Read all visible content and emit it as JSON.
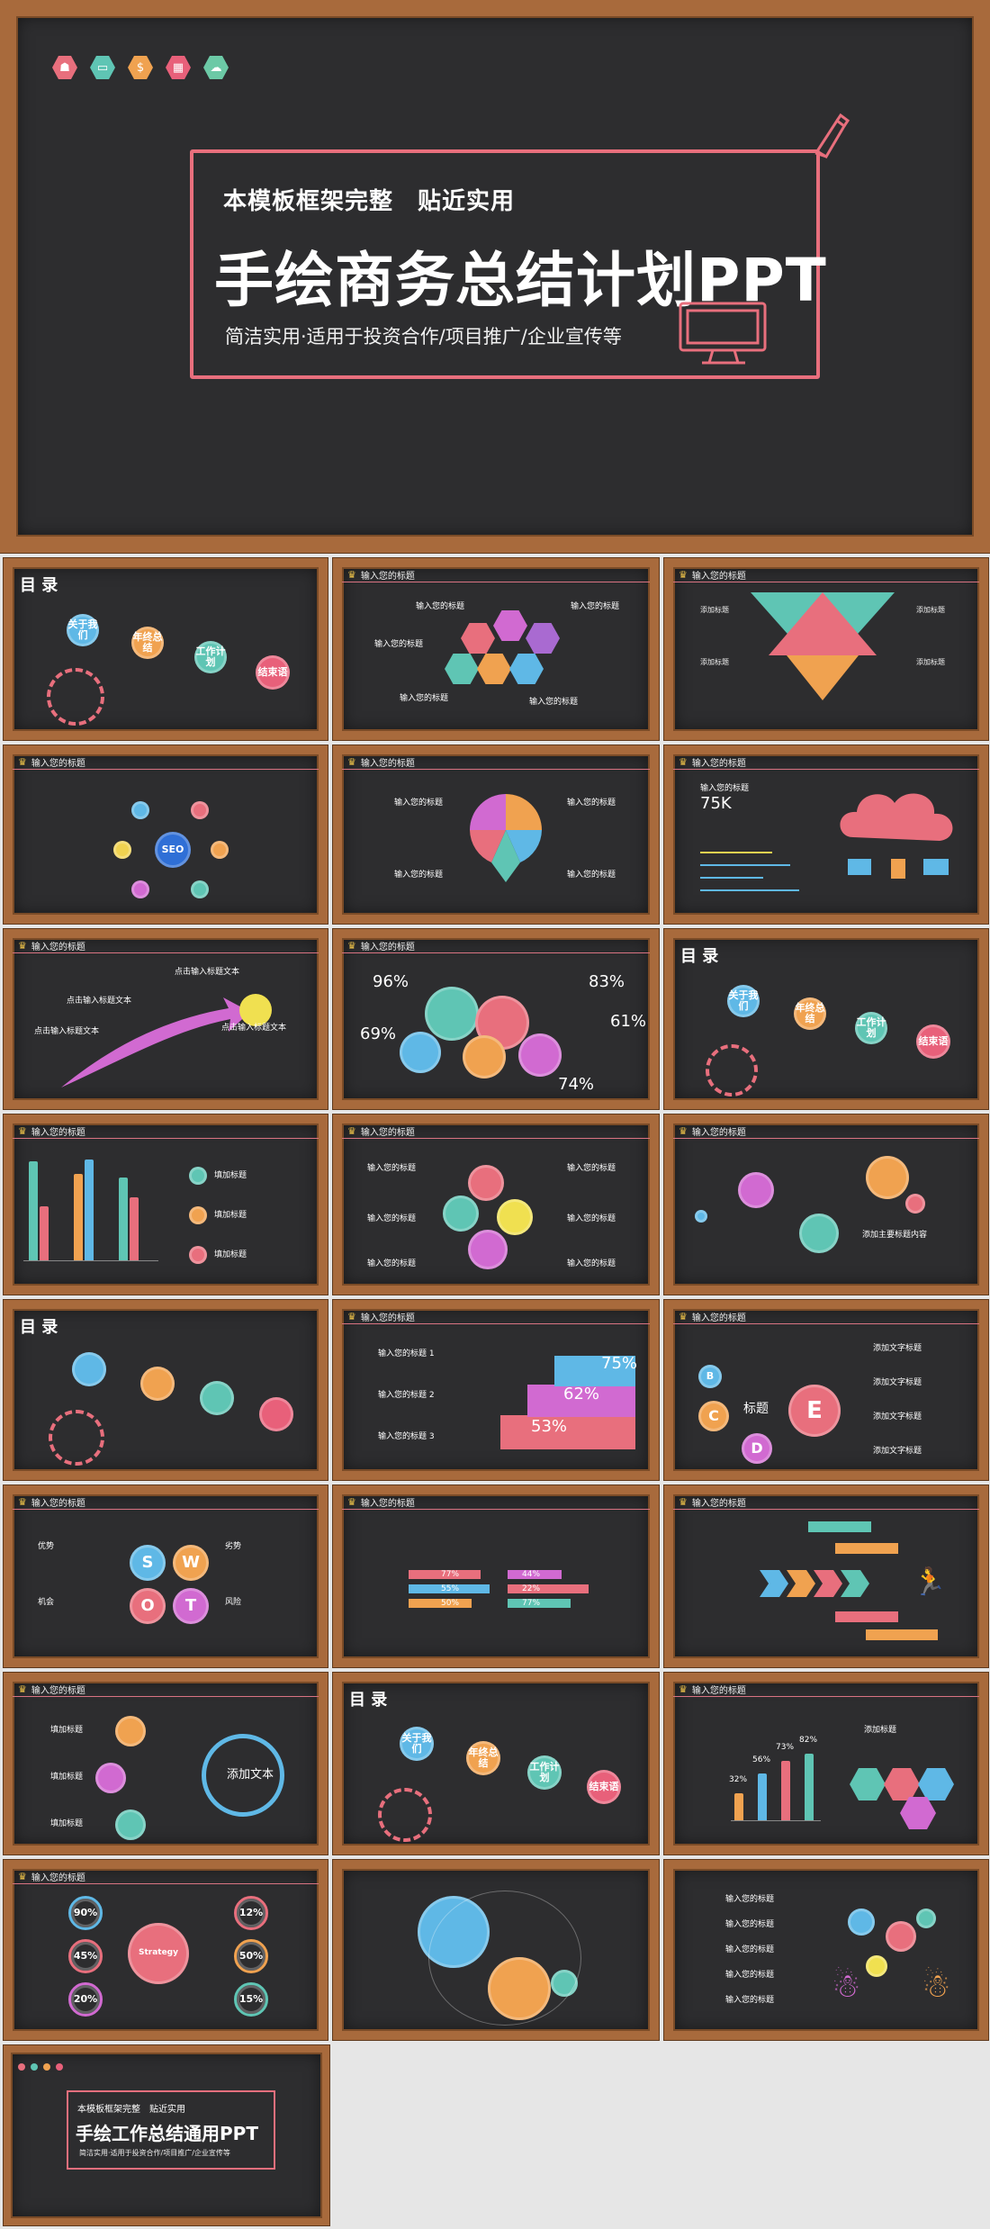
{
  "hero": {
    "subtitle": "本模板框架完整　贴近实用",
    "title": "手绘商务总结计划PPT",
    "desc": "简洁实用·适用于投资合作/项目推广/企业宣传等",
    "icons": [
      "people-icon",
      "monitor-icon",
      "coin-icon",
      "calendar-icon",
      "cloud-icon"
    ],
    "colors": [
      "#e86f7d",
      "#5fc5b4",
      "#f0a250",
      "#e8607a",
      "#6cc9a6"
    ]
  },
  "toc": {
    "title": "目 录",
    "items": [
      "关于我们",
      "年终总结",
      "工作计划",
      "结束语"
    ]
  },
  "header_title": "输入您的标题",
  "slides": {
    "s2": {
      "label": "输入您的标题"
    },
    "s3": {
      "items": [
        "添加标题",
        "添加标题",
        "添加标题",
        "添加标题"
      ]
    },
    "s4": {
      "center": "SEO"
    },
    "s6": {
      "value": "75K"
    },
    "s7": {
      "items": [
        "点击输入标题文本",
        "点击输入标题文本",
        "点击输入标题文本",
        "点击输入标题文本"
      ]
    },
    "s8": {
      "pcts": [
        "96%",
        "83%",
        "69%",
        "61%",
        "74%"
      ]
    },
    "s10": {
      "items": [
        "填加标题",
        "填加标题",
        "填加标题"
      ]
    },
    "s12": {
      "text": "添加主要标题内容"
    },
    "s14": {
      "items": [
        "输入您的标题 1",
        "输入您的标题 2",
        "输入您的标题 3"
      ],
      "pcts": [
        "75%",
        "62%",
        "53%"
      ]
    },
    "s15": {
      "letters": [
        "B",
        "C",
        "D",
        "E"
      ],
      "title": "标题",
      "items": [
        "添加文字标题",
        "添加文字标题",
        "添加文字标题",
        "添加文字标题"
      ]
    },
    "s16": {
      "letters": [
        "S",
        "W",
        "O",
        "T"
      ],
      "labels": [
        "优势",
        "劣势",
        "机会",
        "风险"
      ]
    },
    "s17": {
      "pcts": [
        "77%",
        "55%",
        "50%",
        "44%",
        "22%",
        "77%"
      ]
    },
    "s19": {
      "center": "添加文本",
      "items": [
        "填加标题",
        "填加标题",
        "填加标题"
      ]
    },
    "s21": {
      "pcts": [
        "32%",
        "56%",
        "73%",
        "82%"
      ],
      "label": "添加标题"
    },
    "s22": {
      "pcts": [
        "90%",
        "45%",
        "20%",
        "12%",
        "50%",
        "15%"
      ],
      "center": "Strategy"
    },
    "s24": {
      "items": [
        "输入您的标题",
        "输入您的标题",
        "输入您的标题",
        "输入您的标题",
        "输入您的标题"
      ]
    }
  },
  "tail": {
    "subtitle": "本模板框架完整　贴近实用",
    "title": "手绘工作总结通用PPT",
    "desc": "简洁实用·适用于投资合作/项目推广/企业宣传等"
  }
}
